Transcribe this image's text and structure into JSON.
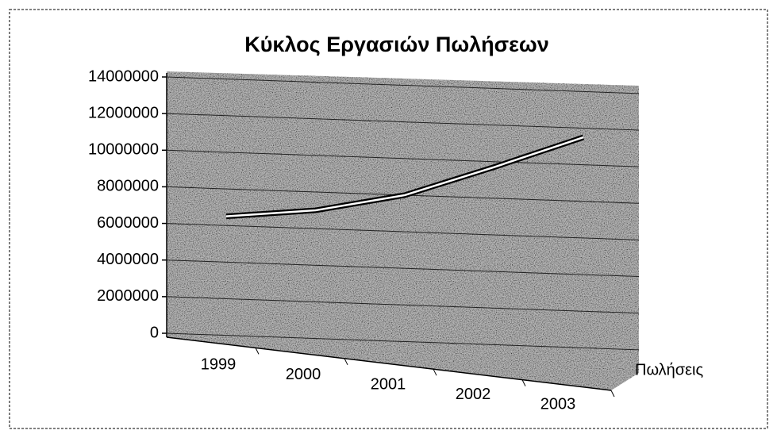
{
  "chart_data": {
    "type": "line",
    "title": "Κύκλος Εργασιών Πωλήσεων",
    "categories": [
      "1999",
      "2000",
      "2001",
      "2002",
      "2003"
    ],
    "series": [
      {
        "name": "Πωλήσεις",
        "color": "#000000",
        "values": [
          6500000,
          7000000,
          8000000,
          9700000,
          11500000
        ]
      }
    ],
    "ylim": [
      0,
      14000000
    ],
    "yticks": [
      0,
      2000000,
      4000000,
      6000000,
      8000000,
      10000000,
      12000000,
      14000000
    ],
    "grid": true
  }
}
